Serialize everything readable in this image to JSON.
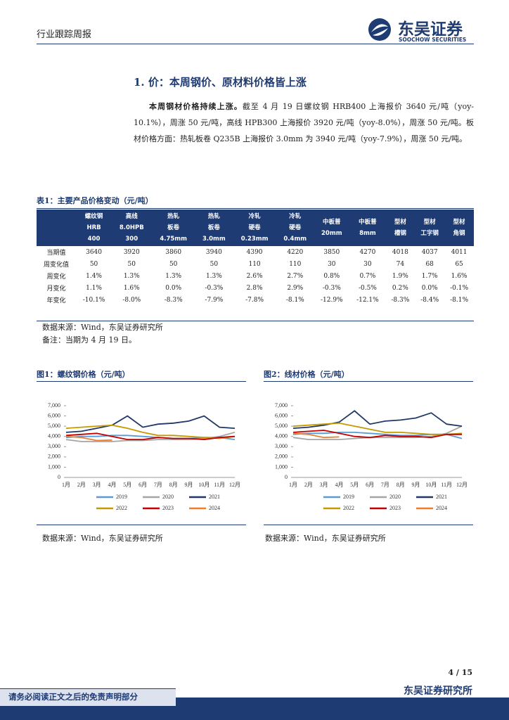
{
  "header": {
    "report_type": "行业跟踪周报",
    "brand": "东吴证券",
    "brand_en": "SOOCHOW SECURITIES"
  },
  "section_title": "1.  价：本周钢价、原材料价格皆上涨",
  "paragraph": {
    "lead": "本周钢材价格持续上涨。",
    "body": "截至 4 月 19 日螺纹钢 HRB400 上海报价 3640 元/吨（yoy-10.1%），周涨 50 元/吨，高线 HPB300 上海报价 3920 元/吨（yoy-8.0%），周涨 50 元/吨。板材价格方面：热轧板卷 Q235B 上海报价 3.0mm 为 3940 元/吨（yoy-7.9%），周涨 50 元/吨。"
  },
  "table": {
    "title": "表1：主要产品价格变动（元/吨）",
    "headers": [
      [
        "螺纹钢",
        "HRB",
        "400"
      ],
      [
        "高线",
        "8.0HPB",
        "300"
      ],
      [
        "热轧",
        "板卷",
        "4.75mm"
      ],
      [
        "热轧",
        "板卷",
        "3.0mm"
      ],
      [
        "冷轧",
        "硬卷",
        "0.23mm"
      ],
      [
        "冷轧",
        "硬卷",
        "0.4mm"
      ],
      [
        "中板普",
        "20mm"
      ],
      [
        "中板普",
        "8mm"
      ],
      [
        "型材",
        "槽钢"
      ],
      [
        "型材",
        "工字钢"
      ],
      [
        "型材",
        "角钢"
      ]
    ],
    "rows": [
      [
        "当期值",
        "3640",
        "3920",
        "3860",
        "3940",
        "4390",
        "4220",
        "3850",
        "4270",
        "4018",
        "4037",
        "4011"
      ],
      [
        "周变化值",
        "50",
        "50",
        "50",
        "50",
        "110",
        "110",
        "30",
        "30",
        "74",
        "68",
        "65"
      ],
      [
        "周变化",
        "1.4%",
        "1.3%",
        "1.3%",
        "1.3%",
        "2.6%",
        "2.7%",
        "0.8%",
        "0.7%",
        "1.9%",
        "1.7%",
        "1.6%"
      ],
      [
        "月变化",
        "1.1%",
        "1.6%",
        "0.0%",
        "-0.3%",
        "2.8%",
        "2.9%",
        "-0.3%",
        "-0.5%",
        "0.2%",
        "0.0%",
        "-0.1%"
      ],
      [
        "年变化",
        "-10.1%",
        "-8.0%",
        "-8.3%",
        "-7.9%",
        "-7.8%",
        "-8.1%",
        "-12.9%",
        "-12.1%",
        "-8.3%",
        "-8.4%",
        "-8.1%"
      ]
    ],
    "source": "数据来源：Wind，东吴证券研究所",
    "note": "备注：当期为 4 月 19 日。"
  },
  "chart_data": [
    {
      "type": "line",
      "title": "图1：螺纹钢价格（元/吨）",
      "source": "数据来源：Wind，东吴证券研究所",
      "categories": [
        "1月",
        "2月",
        "3月",
        "4月",
        "5月",
        "6月",
        "7月",
        "8月",
        "9月",
        "10月",
        "11月",
        "12月"
      ],
      "ylim": [
        0,
        7000
      ],
      "yticks": [
        0,
        {
          "value": 1000,
          "label": "1,000"
        },
        {
          "value": 2000,
          "label": "2,000"
        },
        {
          "value": 3000,
          "label": "3,000"
        },
        {
          "value": 4000,
          "label": "4,000"
        },
        {
          "value": 5000,
          "label": "5,000"
        },
        {
          "value": 6000,
          "label": "6,000"
        },
        {
          "value": 7000,
          "label": "7,000"
        }
      ],
      "series": [
        {
          "name": "2019",
          "color": "#5b9bd5",
          "values": [
            3900,
            4000,
            4000,
            4100,
            4100,
            4000,
            3900,
            3800,
            3800,
            3900,
            3900,
            3700
          ]
        },
        {
          "name": "2020",
          "color": "#a5a5a5",
          "values": [
            3700,
            3500,
            3500,
            3500,
            3600,
            3600,
            3700,
            3700,
            3700,
            3800,
            4000,
            4400
          ]
        },
        {
          "name": "2021",
          "color": "#203864",
          "values": [
            4400,
            4500,
            4800,
            5100,
            6000,
            4900,
            5200,
            5300,
            5500,
            6000,
            4900,
            4800
          ]
        },
        {
          "name": "2022",
          "color": "#c49a00",
          "values": [
            4800,
            4900,
            5000,
            5100,
            4800,
            4400,
            4100,
            4100,
            4000,
            3900,
            3800,
            4000
          ]
        },
        {
          "name": "2023",
          "color": "#c00000",
          "values": [
            4100,
            4200,
            4300,
            4000,
            3700,
            3700,
            3900,
            3800,
            3800,
            3700,
            3900,
            4000
          ]
        },
        {
          "name": "2024",
          "color": "#ed7d31",
          "values": [
            4000,
            3900,
            3600,
            3650,
            null,
            null,
            null,
            null,
            null,
            null,
            null,
            null
          ]
        }
      ]
    },
    {
      "type": "line",
      "title": "图2：线材价格（元/吨）",
      "source": "数据来源：Wind，东吴证券研究所",
      "categories": [
        "1月",
        "2月",
        "3月",
        "4月",
        "5月",
        "6月",
        "7月",
        "8月",
        "9月",
        "10月",
        "11月",
        "12月"
      ],
      "ylim": [
        0,
        7000
      ],
      "yticks": [
        0,
        {
          "value": 1000,
          "label": "1,000"
        },
        {
          "value": 2000,
          "label": "2,000"
        },
        {
          "value": 3000,
          "label": "3,000"
        },
        {
          "value": 4000,
          "label": "4,000"
        },
        {
          "value": 5000,
          "label": "5,000"
        },
        {
          "value": 6000,
          "label": "6,000"
        },
        {
          "value": 7000,
          "label": "7,000"
        }
      ],
      "series": [
        {
          "name": "2019",
          "color": "#5b9bd5",
          "values": [
            4200,
            4300,
            4300,
            4400,
            4400,
            4300,
            4200,
            4100,
            4100,
            4200,
            4200,
            3800
          ]
        },
        {
          "name": "2020",
          "color": "#a5a5a5",
          "values": [
            3900,
            3700,
            3700,
            3700,
            3800,
            3900,
            3900,
            3900,
            3900,
            4000,
            4300,
            5000
          ]
        },
        {
          "name": "2021",
          "color": "#203864",
          "values": [
            4800,
            4900,
            5100,
            5400,
            6500,
            5200,
            5500,
            5600,
            5800,
            6300,
            5200,
            5000
          ]
        },
        {
          "name": "2022",
          "color": "#c49a00",
          "values": [
            5000,
            5100,
            5200,
            5300,
            5000,
            4700,
            4400,
            4400,
            4300,
            4200,
            4200,
            4300
          ]
        },
        {
          "name": "2023",
          "color": "#c00000",
          "values": [
            4400,
            4500,
            4600,
            4300,
            4000,
            3900,
            4100,
            4000,
            4000,
            3900,
            4200,
            4200
          ]
        },
        {
          "name": "2024",
          "color": "#ed7d31",
          "values": [
            4300,
            4200,
            3900,
            3950,
            null,
            null,
            null,
            null,
            null,
            null,
            null,
            null
          ]
        }
      ]
    }
  ],
  "footer": {
    "page": "4 / 15",
    "institute": "东吴证券研究所",
    "disclaimer": "请务必阅读正文之后的免责声明部分"
  }
}
